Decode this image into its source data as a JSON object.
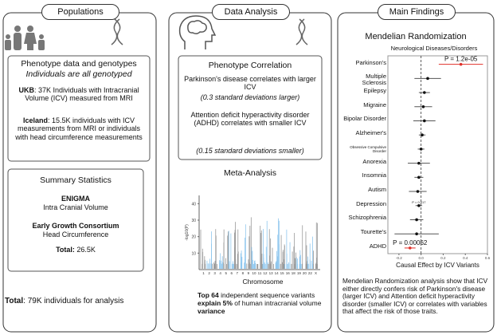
{
  "populations": {
    "title": "Populations",
    "phenotype_box": {
      "heading": "Phenotype data and genotypes",
      "subheading": "Individuals are all genotyped",
      "entries": [
        {
          "name": "UKB",
          "text": ": 37K Individuals with Intracranial Volume (ICV) measured from MRI"
        },
        {
          "name": "Iceland",
          "text": ": 15.5K individuals with ICV measurements from MRI or individuals with head circumference measurements"
        }
      ]
    },
    "summary_box": {
      "heading": "Summary Statistics",
      "entries": [
        {
          "name": "ENIGMA",
          "text": "Intra Cranial Volume"
        },
        {
          "name": "Early Growth Consortium",
          "text": "Head Circumference"
        }
      ],
      "total_label": "Total:",
      "total_value": "26.5K"
    },
    "total": {
      "label": "Total",
      "text": ": 79K individuals for analysis"
    }
  },
  "data_analysis": {
    "title": "Data Analysis",
    "correlation_box": {
      "heading": "Phenotype Correlation",
      "findings": [
        {
          "text": "Parkinson's disease correlates with larger ICV",
          "detail": "(0.3 standard deviations larger)"
        },
        {
          "text": "Attention deficit hyperactivity disorder (ADHD) correlates with smaller ICV",
          "detail": "(0.15 standard deviations smaller)"
        }
      ]
    },
    "meta_analysis": {
      "title": "Meta-Analysis",
      "y_label": "-log10(P)",
      "x_label": "Chromosome",
      "ylim": [
        0,
        45
      ],
      "yticks": [
        10,
        20,
        30,
        40
      ],
      "chromosomes": [
        "1",
        "2",
        "3",
        "4",
        "5",
        "6",
        "7",
        "8",
        "9",
        "10",
        "11",
        "12",
        "13",
        "14",
        "15",
        "16",
        "18",
        "19",
        "20",
        "22",
        "X"
      ],
      "caption": [
        {
          "text": "Top 64",
          "bold": true
        },
        {
          "text": " independent sequence variants ",
          "bold": false
        },
        {
          "text": "explain 5%",
          "bold": true
        },
        {
          "text": " of human intracranial volume ",
          "bold": false
        },
        {
          "text": "variance",
          "bold": true
        }
      ]
    }
  },
  "main_findings": {
    "title": "Main Findings",
    "subtitle": "Mendelian Randomization",
    "forest_plot": {
      "title": "Neurological Diseases/Disorders",
      "x_label": "Causal Effect by ICV Variants",
      "categories": [
        "Parkinson's",
        "Multiple Sclerosis",
        "Epilepsy",
        "Migraine",
        "Bipolar Disorder",
        "Alzheimer's",
        "Obsessive Compulsive Disorder",
        "Anorexia",
        "Insomnia",
        "Autism",
        "Depression",
        "Schizophrenia",
        "Tourette's",
        "ADHD"
      ],
      "values": [
        0.36,
        0.06,
        0.03,
        0.02,
        0.03,
        0.01,
        0.0,
        -0.02,
        -0.02,
        -0.03,
        -0.02,
        -0.04,
        -0.04,
        -0.1
      ],
      "errors": [
        0.2,
        0.12,
        0.05,
        0.08,
        0.1,
        0.03,
        0.03,
        0.1,
        0.04,
        0.08,
        0.03,
        0.06,
        0.2,
        0.05
      ],
      "colors": [
        "#e0302a",
        "#111111",
        "#111111",
        "#111111",
        "#111111",
        "#111111",
        "#111111",
        "#111111",
        "#111111",
        "#111111",
        "#111111",
        "#111111",
        "#111111",
        "#e0302a"
      ],
      "p_labels": [
        "P = 1.2e-05",
        null,
        null,
        null,
        null,
        null,
        null,
        null,
        null,
        null,
        "P = 0.017",
        null,
        null,
        "P = 0.00062"
      ],
      "xlim": [
        -0.3,
        0.6
      ],
      "xticks": [
        -0.2,
        {
          "value": 0,
          "label": "0.0"
        },
        0.2,
        0.4,
        0.6
      ],
      "reference_line": 0
    },
    "summary": "Mendelian Randomization analysis show that ICV either directly confers risk of Parkinson's disease (larger ICV) and Attention deficit hyperactivity disorder (smaller ICV) or correlates with variables that affect the risk of those traits."
  }
}
